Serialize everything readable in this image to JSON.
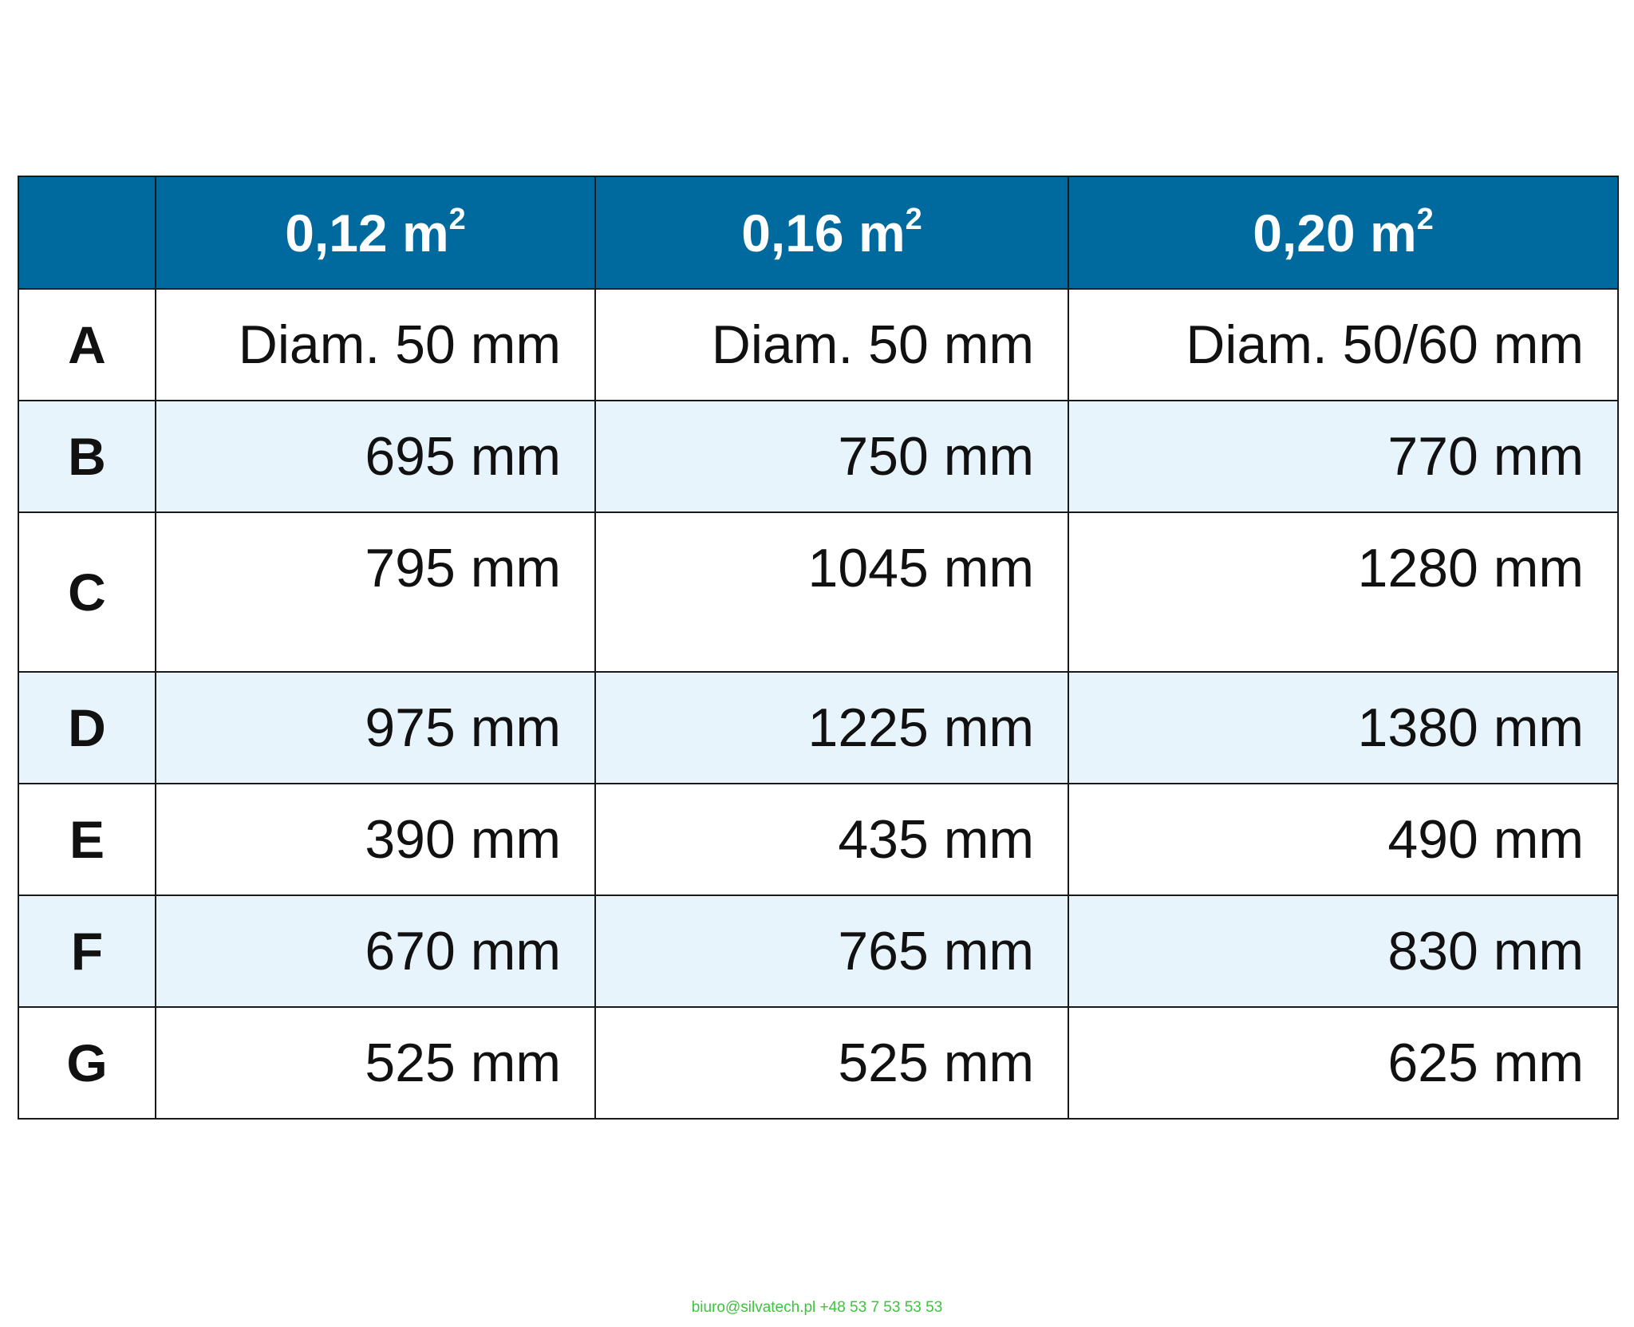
{
  "table": {
    "headers": [
      {
        "value": "0,12 m",
        "sup": "2"
      },
      {
        "value": "0,16 m",
        "sup": "2"
      },
      {
        "value": "0,20 m",
        "sup": "2"
      }
    ],
    "rows": [
      {
        "label": "A",
        "cells": [
          "Diam. 50 mm",
          "Diam. 50 mm",
          "Diam. 50/60 mm"
        ]
      },
      {
        "label": "B",
        "cells": [
          "695 mm",
          "750 mm",
          "770 mm"
        ]
      },
      {
        "label": "C",
        "cells": [
          "795 mm",
          "1045 mm",
          "1280 mm"
        ]
      },
      {
        "label": "D",
        "cells": [
          "975 mm",
          "1225 mm",
          "1380 mm"
        ]
      },
      {
        "label": "E",
        "cells": [
          "390 mm",
          "435 mm",
          "490 mm"
        ]
      },
      {
        "label": "F",
        "cells": [
          "670 mm",
          "765 mm",
          "830 mm"
        ]
      },
      {
        "label": "G",
        "cells": [
          "525 mm",
          "525 mm",
          "625 mm"
        ]
      }
    ]
  },
  "footer": {
    "contact": "biuro@silvatech.pl +48 53 7 53 53 53"
  },
  "colors": {
    "header_bg": "#00699e",
    "alt_row_bg": "#e8f4fc",
    "footer_text": "#3cc43c"
  }
}
